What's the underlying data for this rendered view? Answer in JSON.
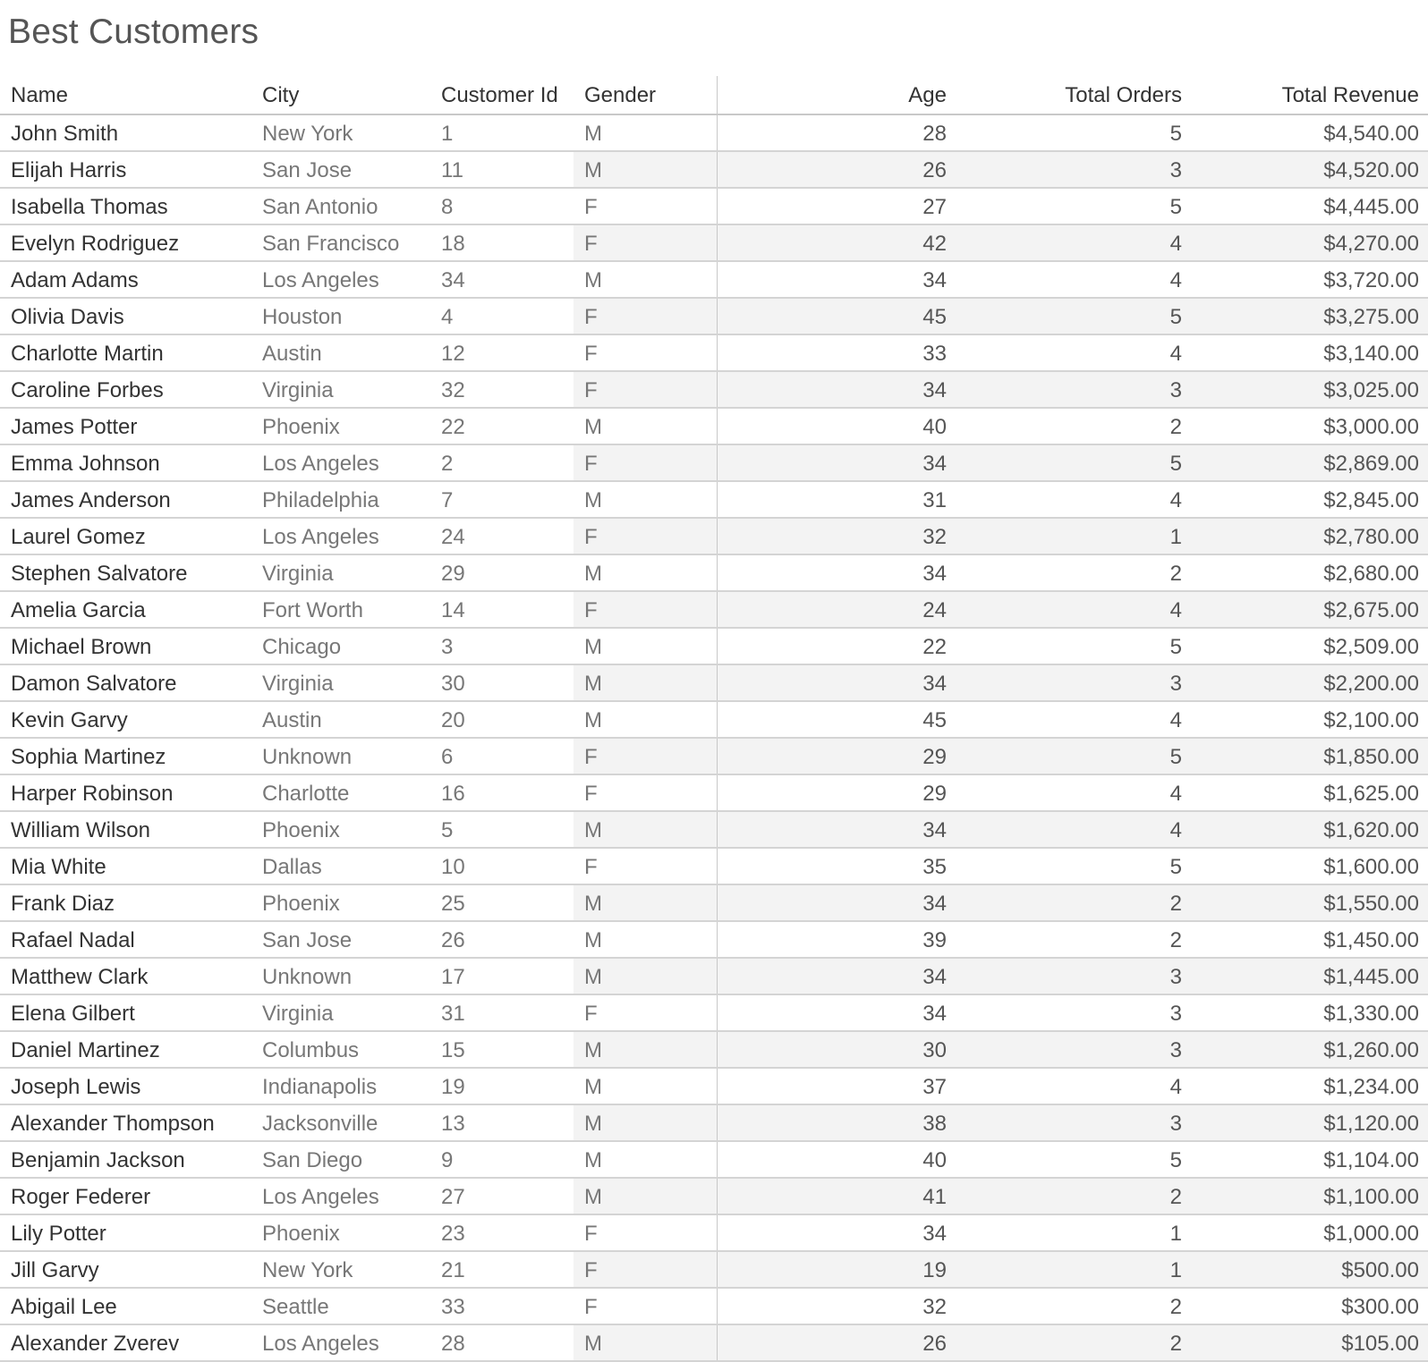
{
  "chart_data": {
    "type": "table",
    "title": "Best Customers",
    "columns": [
      "Name",
      "City",
      "Customer Id",
      "Gender",
      "Age",
      "Total Orders",
      "Total Revenue"
    ],
    "rows": [
      {
        "name": "John Smith",
        "city": "New York",
        "customer_id": "1",
        "gender": "M",
        "age": "28",
        "total_orders": "5",
        "total_revenue": "$4,540.00"
      },
      {
        "name": "Elijah Harris",
        "city": "San Jose",
        "customer_id": "11",
        "gender": "M",
        "age": "26",
        "total_orders": "3",
        "total_revenue": "$4,520.00"
      },
      {
        "name": "Isabella Thomas",
        "city": "San Antonio",
        "customer_id": "8",
        "gender": "F",
        "age": "27",
        "total_orders": "5",
        "total_revenue": "$4,445.00"
      },
      {
        "name": "Evelyn Rodriguez",
        "city": "San Francisco",
        "customer_id": "18",
        "gender": "F",
        "age": "42",
        "total_orders": "4",
        "total_revenue": "$4,270.00"
      },
      {
        "name": "Adam Adams",
        "city": "Los Angeles",
        "customer_id": "34",
        "gender": "M",
        "age": "34",
        "total_orders": "4",
        "total_revenue": "$3,720.00"
      },
      {
        "name": "Olivia Davis",
        "city": "Houston",
        "customer_id": "4",
        "gender": "F",
        "age": "45",
        "total_orders": "5",
        "total_revenue": "$3,275.00"
      },
      {
        "name": "Charlotte Martin",
        "city": "Austin",
        "customer_id": "12",
        "gender": "F",
        "age": "33",
        "total_orders": "4",
        "total_revenue": "$3,140.00"
      },
      {
        "name": "Caroline Forbes",
        "city": "Virginia",
        "customer_id": "32",
        "gender": "F",
        "age": "34",
        "total_orders": "3",
        "total_revenue": "$3,025.00"
      },
      {
        "name": "James Potter",
        "city": "Phoenix",
        "customer_id": "22",
        "gender": "M",
        "age": "40",
        "total_orders": "2",
        "total_revenue": "$3,000.00"
      },
      {
        "name": "Emma Johnson",
        "city": "Los Angeles",
        "customer_id": "2",
        "gender": "F",
        "age": "34",
        "total_orders": "5",
        "total_revenue": "$2,869.00"
      },
      {
        "name": "James Anderson",
        "city": "Philadelphia",
        "customer_id": "7",
        "gender": "M",
        "age": "31",
        "total_orders": "4",
        "total_revenue": "$2,845.00"
      },
      {
        "name": "Laurel Gomez",
        "city": "Los Angeles",
        "customer_id": "24",
        "gender": "F",
        "age": "32",
        "total_orders": "1",
        "total_revenue": "$2,780.00"
      },
      {
        "name": "Stephen Salvatore",
        "city": "Virginia",
        "customer_id": "29",
        "gender": "M",
        "age": "34",
        "total_orders": "2",
        "total_revenue": "$2,680.00"
      },
      {
        "name": "Amelia Garcia",
        "city": "Fort Worth",
        "customer_id": "14",
        "gender": "F",
        "age": "24",
        "total_orders": "4",
        "total_revenue": "$2,675.00"
      },
      {
        "name": "Michael Brown",
        "city": "Chicago",
        "customer_id": "3",
        "gender": "M",
        "age": "22",
        "total_orders": "5",
        "total_revenue": "$2,509.00"
      },
      {
        "name": "Damon Salvatore",
        "city": "Virginia",
        "customer_id": "30",
        "gender": "M",
        "age": "34",
        "total_orders": "3",
        "total_revenue": "$2,200.00"
      },
      {
        "name": "Kevin Garvy",
        "city": "Austin",
        "customer_id": "20",
        "gender": "M",
        "age": "45",
        "total_orders": "4",
        "total_revenue": "$2,100.00"
      },
      {
        "name": "Sophia Martinez",
        "city": "Unknown",
        "customer_id": "6",
        "gender": "F",
        "age": "29",
        "total_orders": "5",
        "total_revenue": "$1,850.00"
      },
      {
        "name": "Harper Robinson",
        "city": "Charlotte",
        "customer_id": "16",
        "gender": "F",
        "age": "29",
        "total_orders": "4",
        "total_revenue": "$1,625.00"
      },
      {
        "name": "William Wilson",
        "city": "Phoenix",
        "customer_id": "5",
        "gender": "M",
        "age": "34",
        "total_orders": "4",
        "total_revenue": "$1,620.00"
      },
      {
        "name": "Mia White",
        "city": "Dallas",
        "customer_id": "10",
        "gender": "F",
        "age": "35",
        "total_orders": "5",
        "total_revenue": "$1,600.00"
      },
      {
        "name": "Frank Diaz",
        "city": "Phoenix",
        "customer_id": "25",
        "gender": "M",
        "age": "34",
        "total_orders": "2",
        "total_revenue": "$1,550.00"
      },
      {
        "name": "Rafael Nadal",
        "city": "San Jose",
        "customer_id": "26",
        "gender": "M",
        "age": "39",
        "total_orders": "2",
        "total_revenue": "$1,450.00"
      },
      {
        "name": "Matthew Clark",
        "city": "Unknown",
        "customer_id": "17",
        "gender": "M",
        "age": "34",
        "total_orders": "3",
        "total_revenue": "$1,445.00"
      },
      {
        "name": "Elena Gilbert",
        "city": "Virginia",
        "customer_id": "31",
        "gender": "F",
        "age": "34",
        "total_orders": "3",
        "total_revenue": "$1,330.00"
      },
      {
        "name": "Daniel Martinez",
        "city": "Columbus",
        "customer_id": "15",
        "gender": "M",
        "age": "30",
        "total_orders": "3",
        "total_revenue": "$1,260.00"
      },
      {
        "name": "Joseph Lewis",
        "city": "Indianapolis",
        "customer_id": "19",
        "gender": "M",
        "age": "37",
        "total_orders": "4",
        "total_revenue": "$1,234.00"
      },
      {
        "name": "Alexander Thompson",
        "city": "Jacksonville",
        "customer_id": "13",
        "gender": "M",
        "age": "38",
        "total_orders": "3",
        "total_revenue": "$1,120.00"
      },
      {
        "name": "Benjamin Jackson",
        "city": "San Diego",
        "customer_id": "9",
        "gender": "M",
        "age": "40",
        "total_orders": "5",
        "total_revenue": "$1,104.00"
      },
      {
        "name": "Roger Federer",
        "city": "Los Angeles",
        "customer_id": "27",
        "gender": "M",
        "age": "41",
        "total_orders": "2",
        "total_revenue": "$1,100.00"
      },
      {
        "name": "Lily Potter",
        "city": "Phoenix",
        "customer_id": "23",
        "gender": "F",
        "age": "34",
        "total_orders": "1",
        "total_revenue": "$1,000.00"
      },
      {
        "name": "Jill Garvy",
        "city": "New York",
        "customer_id": "21",
        "gender": "F",
        "age": "19",
        "total_orders": "1",
        "total_revenue": "$500.00"
      },
      {
        "name": "Abigail Lee",
        "city": "Seattle",
        "customer_id": "33",
        "gender": "F",
        "age": "32",
        "total_orders": "2",
        "total_revenue": "$300.00"
      },
      {
        "name": "Alexander Zverev",
        "city": "Los Angeles",
        "customer_id": "28",
        "gender": "M",
        "age": "26",
        "total_orders": "2",
        "total_revenue": "$105.00"
      }
    ],
    "banding": "alternate-rows-shaded"
  }
}
